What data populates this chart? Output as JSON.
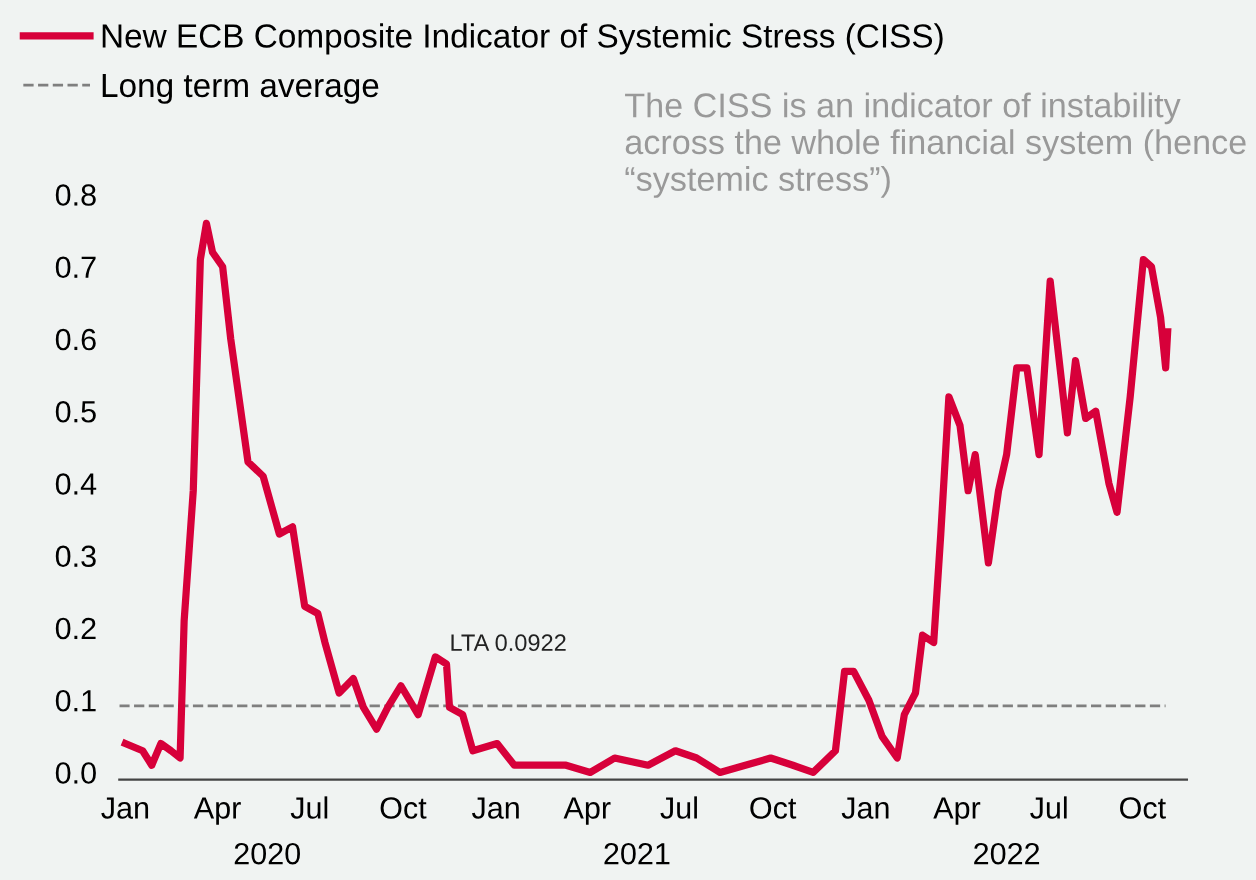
{
  "chart_data": {
    "type": "line",
    "annotations": [
      "The CISS is an indicator of instability across the whole financial system (hence “systemic stress”)",
      {
        "text": "LTA 0.0922",
        "x": "2020-11-16",
        "y": 0.0922
      }
    ],
    "x": [
      "2020-01-01",
      "2020-01-18",
      "2020-01-27",
      "2020-02-05",
      "2020-02-15",
      "2020-02-24",
      "2020-02-28",
      "2020-03-08",
      "2020-03-15",
      "2020-03-21",
      "2020-03-27",
      "2020-04-06",
      "2020-04-14",
      "2020-04-23",
      "2020-05-01",
      "2020-05-16",
      "2020-06-01",
      "2020-06-14",
      "2020-06-26",
      "2020-07-09",
      "2020-07-16",
      "2020-07-30",
      "2020-08-13",
      "2020-08-23",
      "2020-09-05",
      "2020-09-16",
      "2020-09-29",
      "2020-10-16",
      "2020-11-02",
      "2020-11-13",
      "2020-11-16",
      "2020-11-29",
      "2020-12-09",
      "2021-01-02",
      "2021-01-19",
      "2021-02-08",
      "2021-03-11",
      "2021-04-04",
      "2021-04-28",
      "2021-05-31",
      "2021-06-27",
      "2021-07-18",
      "2021-08-10",
      "2021-09-04",
      "2021-09-29",
      "2021-10-21",
      "2021-11-10",
      "2021-12-02",
      "2021-12-11",
      "2021-12-20",
      "2022-01-04",
      "2022-01-17",
      "2022-02-01",
      "2022-02-08",
      "2022-02-19",
      "2022-02-26",
      "2022-03-09",
      "2022-03-16",
      "2022-03-24",
      "2022-04-04",
      "2022-04-12",
      "2022-04-19",
      "2022-05-02",
      "2022-05-12",
      "2022-05-20",
      "2022-05-30",
      "2022-06-09",
      "2022-06-21",
      "2022-07-02",
      "2022-07-19",
      "2022-07-27",
      "2022-08-06",
      "2022-08-16",
      "2022-08-29",
      "2022-09-06",
      "2022-09-19",
      "2022-10-02",
      "2022-10-10",
      "2022-10-19",
      "2022-10-24",
      "2022-10-26"
    ],
    "series": [
      {
        "name": "New ECB Composite Indicator of Systemic Stress (CISS)",
        "color": "#d7003a",
        "values": [
          0.04,
          0.03,
          0.01,
          0.04,
          0.03,
          0.02,
          0.21,
          0.39,
          0.71,
          0.76,
          0.72,
          0.7,
          0.6,
          0.51,
          0.43,
          0.41,
          0.33,
          0.34,
          0.23,
          0.22,
          0.18,
          0.11,
          0.13,
          0.09,
          0.06,
          0.09,
          0.12,
          0.08,
          0.16,
          0.15,
          0.09,
          0.08,
          0.03,
          0.04,
          0.01,
          0.01,
          0.01,
          0.0,
          0.02,
          0.01,
          0.03,
          0.02,
          0.0,
          0.01,
          0.02,
          0.01,
          0.0,
          0.03,
          0.14,
          0.14,
          0.1,
          0.05,
          0.02,
          0.08,
          0.11,
          0.19,
          0.18,
          0.33,
          0.52,
          0.48,
          0.39,
          0.44,
          0.29,
          0.39,
          0.44,
          0.56,
          0.56,
          0.44,
          0.68,
          0.47,
          0.57,
          0.49,
          0.5,
          0.4,
          0.36,
          0.52,
          0.71,
          0.7,
          0.63,
          0.56,
          0.61
        ]
      }
    ],
    "ref_lines": [
      {
        "axis": "y",
        "value": 0.0922,
        "label": "Long term average",
        "color": "#7f7f7f",
        "line_style": "dashed"
      }
    ],
    "xlim": [
      "2019-12-26",
      "2022-11-14"
    ],
    "xticks": [
      {
        "value": "2020-01-01",
        "label": "Jan"
      },
      {
        "value": "2020-04-01",
        "label": "Apr"
      },
      {
        "value": "2020-07-01",
        "label": "Jul"
      },
      {
        "value": "2020-10-01",
        "label": "Oct"
      },
      {
        "value": "2021-01-01",
        "label": "Jan"
      },
      {
        "value": "2021-04-01",
        "label": "Apr"
      },
      {
        "value": "2021-07-01",
        "label": "Jul"
      },
      {
        "value": "2021-10-01",
        "label": "Oct"
      },
      {
        "value": "2022-01-01",
        "label": "Jan"
      },
      {
        "value": "2022-04-01",
        "label": "Apr"
      },
      {
        "value": "2022-07-01",
        "label": "Jul"
      },
      {
        "value": "2022-10-01",
        "label": "Oct"
      }
    ],
    "x2lim": [
      "2019-12-26",
      "2022-11-14"
    ],
    "x2ticks": [
      {
        "value": "2020-05-20",
        "label": "2020"
      },
      {
        "value": "2021-05-20",
        "label": "2021"
      },
      {
        "value": "2022-05-20",
        "label": "2022"
      }
    ],
    "ylim": [
      -0.01,
      0.8
    ],
    "yticks": [
      {
        "value": 0,
        "label": "0.0"
      },
      {
        "value": 0.1,
        "label": "0.1"
      },
      {
        "value": 0.2,
        "label": "0.2"
      },
      {
        "value": 0.3,
        "label": "0.3"
      },
      {
        "value": 0.4,
        "label": "0.4"
      },
      {
        "value": 0.5,
        "label": "0.5"
      },
      {
        "value": 0.6,
        "label": "0.6"
      },
      {
        "value": 0.7,
        "label": "0.7"
      },
      {
        "value": 0.8,
        "label": "0.8"
      }
    ],
    "grid": false,
    "legend": "top left",
    "marker": "none",
    "line_style": "solid"
  }
}
